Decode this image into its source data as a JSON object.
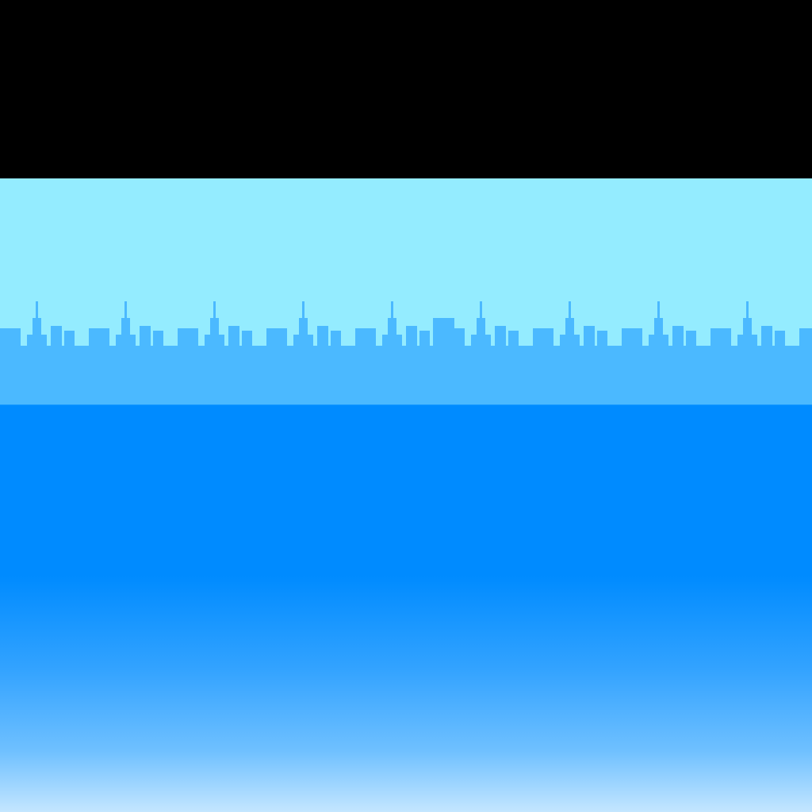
{
  "scene": {
    "colors": {
      "top_band": "#000000",
      "sky": "#94ecff",
      "skyline": "#4bb9ff",
      "water_top": "#008bff",
      "water_bottom": "#c4e6ff"
    },
    "layers": [
      "top-band",
      "sky",
      "city-skyline",
      "water"
    ]
  }
}
